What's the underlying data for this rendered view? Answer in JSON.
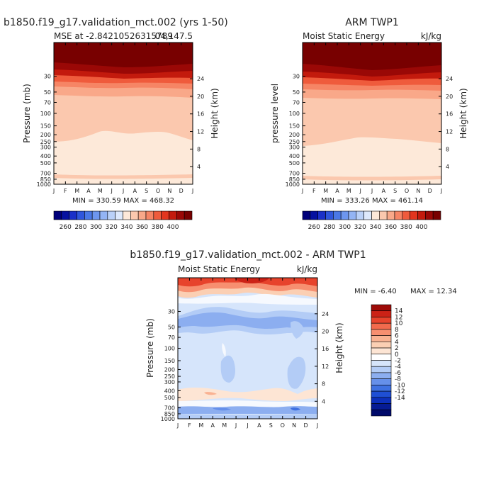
{
  "chart_data": [
    {
      "type": "heatmap",
      "title": "b1850.f19_g17.validation_mct.002 (yrs 1-50)",
      "subtitle_left": "MSE at -2.84210526315789",
      "subtitle_right": "04,147.5",
      "ylabel": "Pressure (mb)",
      "ylabel_right": "Height (km)",
      "x_ticks": [
        "J",
        "F",
        "M",
        "A",
        "M",
        "J",
        "J",
        "A",
        "S",
        "O",
        "N",
        "D",
        "J"
      ],
      "y_ticks": [
        "30",
        "50",
        "70",
        "100",
        "150",
        "200",
        "250",
        "300",
        "400",
        "500",
        "700",
        "850",
        "1000"
      ],
      "height_ticks": [
        "24",
        "20",
        "16",
        "12",
        "8",
        "4"
      ],
      "stats": "MIN = 330.59  MAX = 468.32",
      "colorbar_ticks": [
        "260",
        "280",
        "300",
        "320",
        "340",
        "360",
        "380",
        "400"
      ],
      "min": 330.59,
      "max": 468.32
    },
    {
      "type": "heatmap",
      "title": "ARM TWP1",
      "subtitle_left": "Moist Static Energy",
      "subtitle_right": "kJ/kg",
      "ylabel": "pressure level",
      "ylabel_right": "Height (km)",
      "x_ticks": [
        "J",
        "F",
        "M",
        "A",
        "M",
        "J",
        "J",
        "A",
        "S",
        "O",
        "N",
        "D",
        "J"
      ],
      "y_ticks": [
        "30",
        "50",
        "70",
        "100",
        "150",
        "200",
        "250",
        "300",
        "400",
        "500",
        "700",
        "850",
        "1000"
      ],
      "height_ticks": [
        "24",
        "20",
        "16",
        "12",
        "8",
        "4"
      ],
      "stats": "MIN = 333.26  MAX = 461.14",
      "colorbar_ticks": [
        "260",
        "280",
        "300",
        "320",
        "340",
        "360",
        "380",
        "400"
      ],
      "min": 333.26,
      "max": 461.14
    },
    {
      "type": "heatmap",
      "title": "b1850.f19_g17.validation_mct.002 - ARM TWP1",
      "subtitle_left": "Moist Static Energy",
      "subtitle_right": "kJ/kg",
      "ylabel": "Pressure (mb)",
      "ylabel_right": "Height (km)",
      "x_ticks": [
        "J",
        "F",
        "M",
        "A",
        "M",
        "J",
        "J",
        "A",
        "S",
        "O",
        "N",
        "D",
        "J"
      ],
      "y_ticks": [
        "30",
        "50",
        "70",
        "100",
        "150",
        "200",
        "250",
        "300",
        "400",
        "500",
        "700",
        "850",
        "1000"
      ],
      "height_ticks": [
        "24",
        "20",
        "16",
        "12",
        "8",
        "4"
      ],
      "stats_min": "MIN =  -6.40",
      "stats_max": "MAX =  12.34",
      "colorbar_ticks": [
        "14",
        "12",
        "10",
        "8",
        "6",
        "4",
        "2",
        "0",
        "-2",
        "-4",
        "-6",
        "-8",
        "-10",
        "-12",
        "-14"
      ],
      "min": -6.4,
      "max": 12.34
    }
  ],
  "colors": {
    "warm": [
      "#fde9d9",
      "#fbc8ae",
      "#f9a889",
      "#f68565",
      "#ef5b3c",
      "#e2351e",
      "#c31a0d",
      "#9a0806",
      "#780000"
    ],
    "cool": [
      "#ffffff",
      "#dbe8fb",
      "#b7cdf5",
      "#93b1f0",
      "#6f94ea",
      "#4b76e2",
      "#2a58d8",
      "#1a3ccb",
      "#0e22b0",
      "#06108a",
      "#000060"
    ],
    "diff_pos": [
      "#fde5d4",
      "#fbcfb3",
      "#f9b292",
      "#f78f70",
      "#f26a4d",
      "#e7432c",
      "#cc2216",
      "#9e0b08"
    ],
    "diff_neg": [
      "#f6f9fe",
      "#d6e5fb",
      "#b3ccf6",
      "#8caef0",
      "#6690ea",
      "#3f71e1",
      "#1f4fd4",
      "#0d30bb",
      "#061b94",
      "#000a6a"
    ]
  }
}
